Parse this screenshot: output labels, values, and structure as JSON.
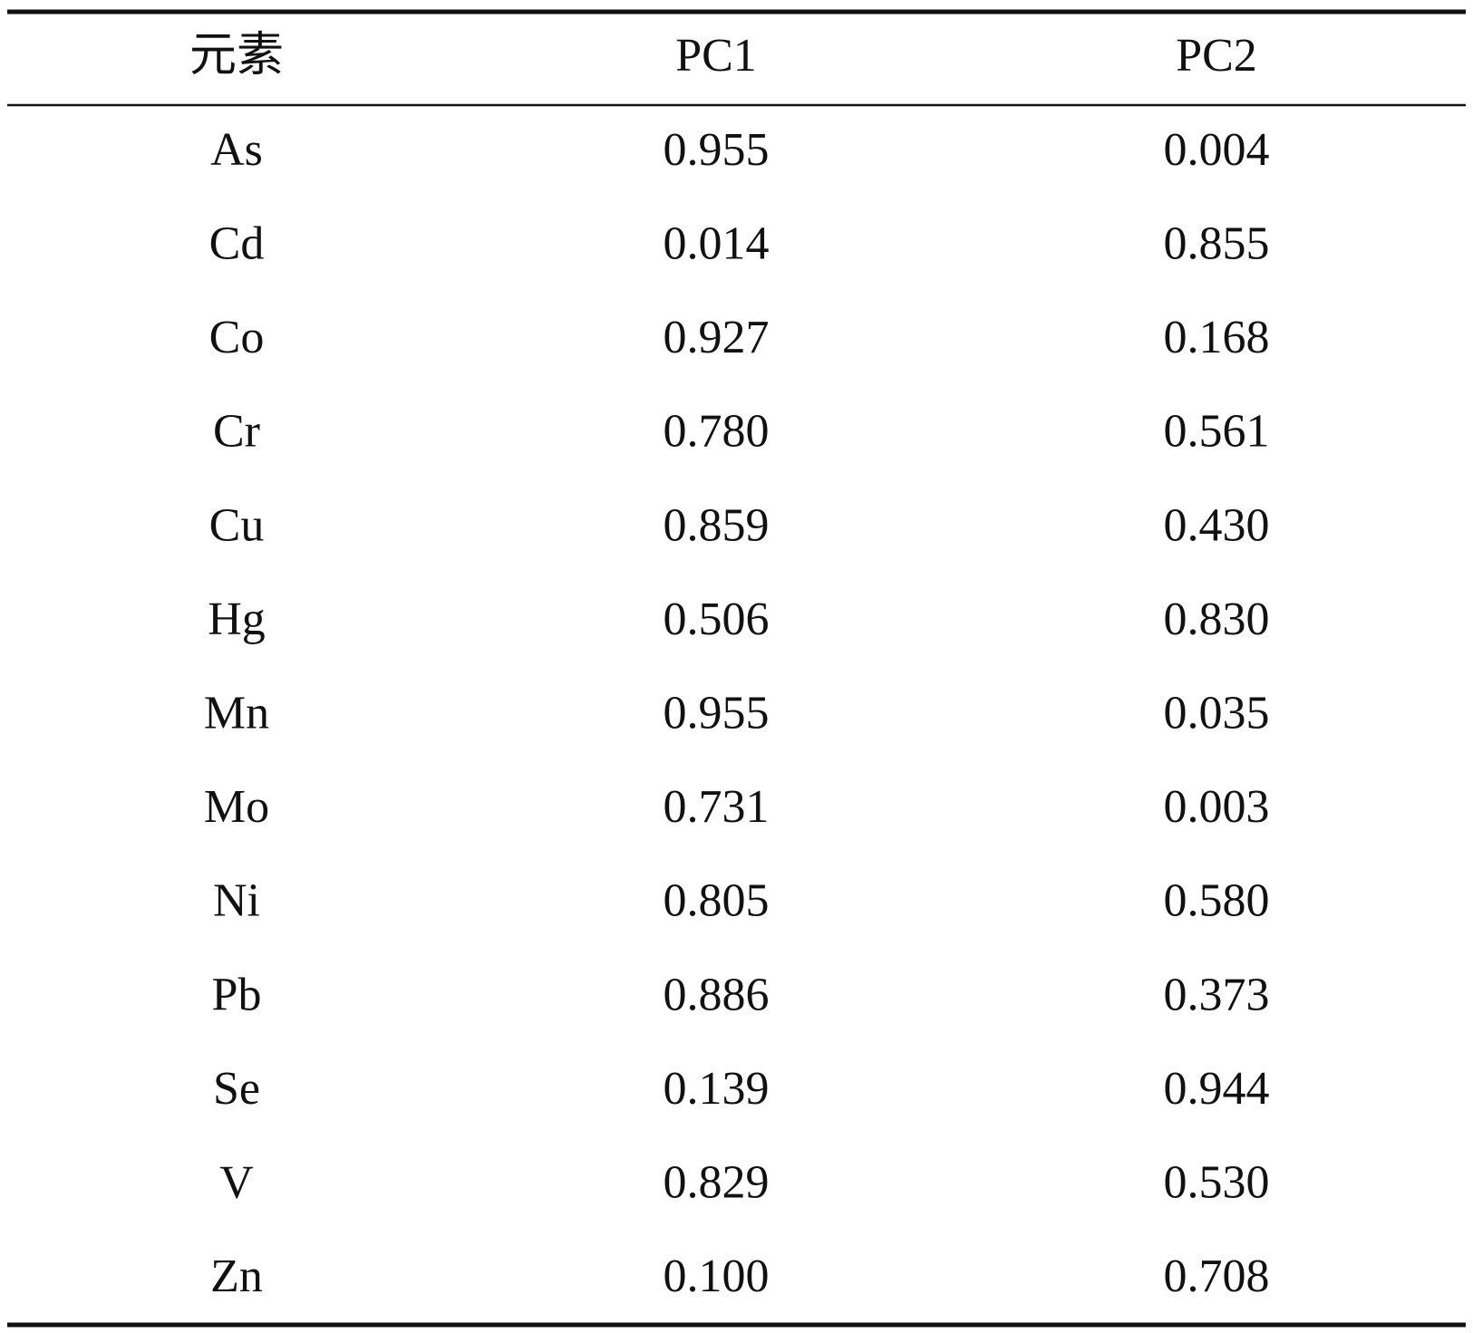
{
  "table": {
    "header": [
      "元素",
      "PC1",
      "PC2"
    ],
    "rows": [
      [
        "As",
        "0.955",
        "0.004"
      ],
      [
        "Cd",
        "0.014",
        "0.855"
      ],
      [
        "Co",
        "0.927",
        "0.168"
      ],
      [
        "Cr",
        "0.780",
        "0.561"
      ],
      [
        "Cu",
        "0.859",
        "0.430"
      ],
      [
        "Hg",
        "0.506",
        "0.830"
      ],
      [
        "Mn",
        "0.955",
        "0.035"
      ],
      [
        "Mo",
        "0.731",
        "0.003"
      ],
      [
        "Ni",
        "0.805",
        "0.580"
      ],
      [
        "Pb",
        "0.886",
        "0.373"
      ],
      [
        "Se",
        "0.139",
        "0.944"
      ],
      [
        "V",
        "0.829",
        "0.530"
      ],
      [
        "Zn",
        "0.100",
        "0.708"
      ]
    ]
  }
}
